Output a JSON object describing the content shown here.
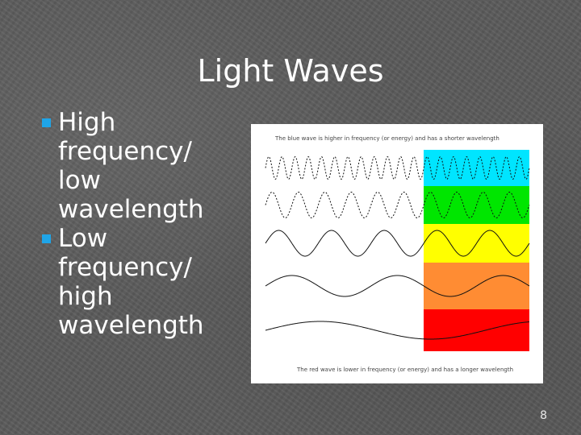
{
  "title": "Light Waves",
  "bullets": [
    {
      "text": "High frequency/ low wavelength"
    },
    {
      "text": "Low frequency/ high wavelength"
    }
  ],
  "figure": {
    "top_caption": "The blue wave is higher in frequency (or energy) and has a shorter wavelength",
    "bottom_caption": "The red wave is lower in frequency (or energy) and has a longer wavelength",
    "waves": [
      {
        "name": "blue",
        "color": "#00e5ff",
        "cycles": 20
      },
      {
        "name": "green",
        "color": "#00e600",
        "cycles": 10
      },
      {
        "name": "yellow",
        "color": "#ffff00",
        "cycles": 5
      },
      {
        "name": "orange",
        "color": "#ff8c33",
        "cycles": 2.5
      },
      {
        "name": "red",
        "color": "#ff0000",
        "cycles": 1.2
      }
    ]
  },
  "page_number": "8"
}
